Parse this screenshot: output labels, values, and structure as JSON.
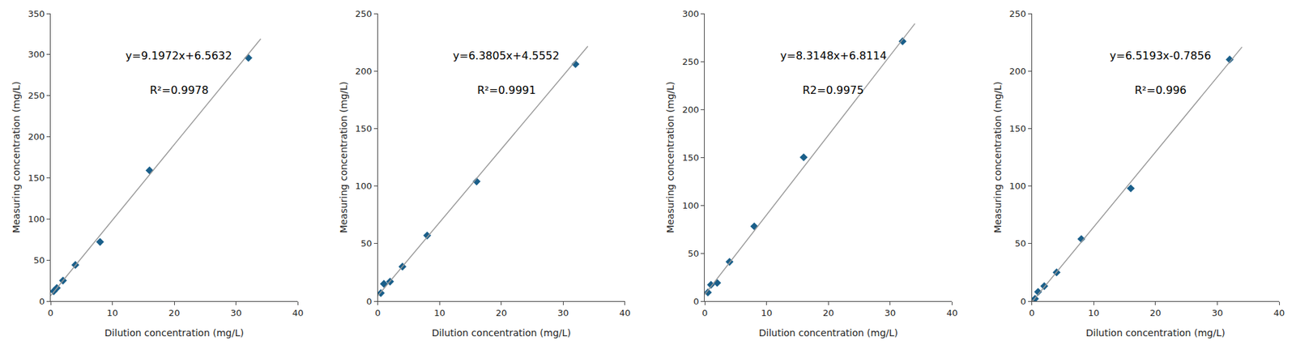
{
  "chart_data": [
    {
      "type": "scatter",
      "xlabel": "Dilution concentration (mg/L)",
      "ylabel": "Measuring concentration (mg/L)",
      "annotations": [
        "y=9.1972x+6.5632",
        "R²=0.9978"
      ],
      "series": [
        {
          "type": "scatter",
          "marker": "diamond",
          "color": "#1a5f8a",
          "x": [
            0.5,
            1.0,
            2.0,
            4.0,
            8.0,
            16.0,
            32.0
          ],
          "values": [
            12.0,
            16.0,
            25.0,
            44.0,
            72.0,
            159.0,
            296.0
          ]
        },
        {
          "type": "line",
          "color": "#999999",
          "x": [
            0,
            34
          ],
          "values": [
            6.5632,
            319.268
          ]
        }
      ],
      "xlim": [
        0,
        40
      ],
      "xticks": [
        0,
        10,
        20,
        30,
        40
      ],
      "ylim": [
        0,
        350
      ],
      "yticks": [
        0,
        50,
        100,
        150,
        200,
        250,
        300,
        350
      ],
      "grid": false
    },
    {
      "type": "scatter",
      "xlabel": "Dilution concentration (mg/L)",
      "ylabel": "Measuring concentration (mg/L)",
      "annotations": [
        "y=6.3805x+4.5552",
        "R²=0.9991"
      ],
      "series": [
        {
          "type": "scatter",
          "marker": "diamond",
          "color": "#1a5f8a",
          "x": [
            0.5,
            1.0,
            2.0,
            4.0,
            8.0,
            16.0,
            32.0
          ],
          "values": [
            7.0,
            15.0,
            17.0,
            30.0,
            57.0,
            104.0,
            206.0
          ]
        },
        {
          "type": "line",
          "color": "#999999",
          "x": [
            0,
            34
          ],
          "values": [
            4.5552,
            221.4922
          ]
        }
      ],
      "xlim": [
        0,
        40
      ],
      "xticks": [
        0,
        10,
        20,
        30,
        40
      ],
      "ylim": [
        0,
        250
      ],
      "yticks": [
        0,
        50,
        100,
        150,
        200,
        250
      ],
      "grid": false
    },
    {
      "type": "scatter",
      "xlabel": "Dilution concentration (mg/L)",
      "ylabel": "Measuring concentration (mg/L)",
      "annotations": [
        "y=8.3148x+6.8114",
        "R2=0.9975"
      ],
      "series": [
        {
          "type": "scatter",
          "marker": "diamond",
          "color": "#1a5f8a",
          "x": [
            0.5,
            1.0,
            2.0,
            4.0,
            8.0,
            16.0,
            32.0
          ],
          "values": [
            9.0,
            17.0,
            19.0,
            41.0,
            78.0,
            150.0,
            271.0
          ]
        },
        {
          "type": "line",
          "color": "#999999",
          "x": [
            0,
            34
          ],
          "values": [
            6.8114,
            289.5146
          ]
        }
      ],
      "xlim": [
        0,
        40
      ],
      "xticks": [
        0,
        10,
        20,
        30,
        40
      ],
      "ylim": [
        0,
        300
      ],
      "yticks": [
        0,
        50,
        100,
        150,
        200,
        250,
        300
      ],
      "grid": false
    },
    {
      "type": "scatter",
      "xlabel": "Dilution concentration (mg/L)",
      "ylabel": "Measuring concentration (mg/L)",
      "annotations": [
        "y=6.5193x-0.7856",
        "R²=0.996"
      ],
      "series": [
        {
          "type": "scatter",
          "marker": "diamond",
          "color": "#1a5f8a",
          "x": [
            0.5,
            1.0,
            2.0,
            4.0,
            8.0,
            16.0,
            32.0
          ],
          "values": [
            2.0,
            8.0,
            13.0,
            25.0,
            54.0,
            98.0,
            210.0
          ]
        },
        {
          "type": "line",
          "color": "#999999",
          "x": [
            0,
            0.1709,
            34
          ],
          "values": [
            0,
            0.3283,
            220.8706
          ]
        }
      ],
      "xlim": [
        0,
        40
      ],
      "xticks": [
        0,
        10,
        20,
        30,
        40
      ],
      "ylim": [
        0,
        250
      ],
      "yticks": [
        0,
        50,
        100,
        150,
        200,
        250
      ],
      "grid": false
    }
  ]
}
